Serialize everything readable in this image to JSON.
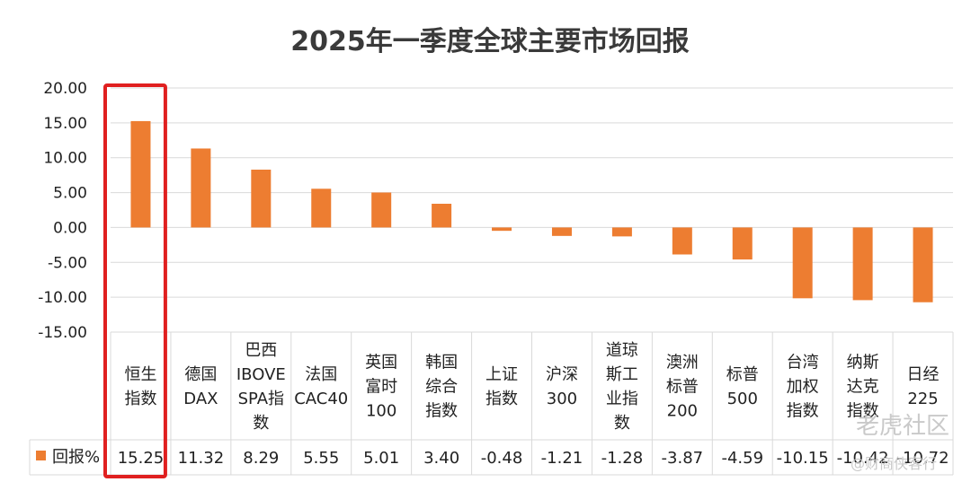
{
  "chart_data": {
    "type": "bar",
    "title": "2025年一季度全球主要市场回报",
    "categories": [
      [
        "恒生",
        "指数"
      ],
      [
        "德国",
        "DAX"
      ],
      [
        "巴西",
        "IBOVE",
        "SPA指",
        "数"
      ],
      [
        "法国",
        "CAC40"
      ],
      [
        "英国",
        "富时",
        "100"
      ],
      [
        "韩国",
        "综合",
        "指数"
      ],
      [
        "上证",
        "指数"
      ],
      [
        "沪深",
        "300"
      ],
      [
        "道琼",
        "斯工",
        "业指",
        "数"
      ],
      [
        "澳洲",
        "标普",
        "200"
      ],
      [
        "标普",
        "500"
      ],
      [
        "台湾",
        "加权",
        "指数"
      ],
      [
        "纳斯",
        "达克",
        "指数"
      ],
      [
        "日经",
        "225"
      ]
    ],
    "series": [
      {
        "name": "回报%",
        "values": [
          15.25,
          11.32,
          8.29,
          5.55,
          5.01,
          3.4,
          -0.48,
          -1.21,
          -1.28,
          -3.87,
          -4.59,
          -10.15,
          -10.42,
          -10.72
        ]
      }
    ],
    "value_labels": [
      "15.25",
      "11.32",
      "8.29",
      "5.55",
      "5.01",
      "3.40",
      "-0.48",
      "-1.21",
      "-1.28",
      "-3.87",
      "-4.59",
      "-10.15",
      "-10.42",
      "-10.72"
    ],
    "yticks": [
      "20.00",
      "15.00",
      "10.00",
      "5.00",
      "0.00",
      "-5.00",
      "-10.00",
      "-15.00"
    ],
    "ylim": [
      -15,
      20
    ],
    "grid": true,
    "legend": "data-table",
    "highlight_index": 0,
    "colors": {
      "bar": "#ED7D31",
      "grid": "#d9d9d9",
      "highlight": "#e02020"
    }
  },
  "watermark": {
    "text": "老虎社区",
    "sub": "@财商侠客行"
  }
}
